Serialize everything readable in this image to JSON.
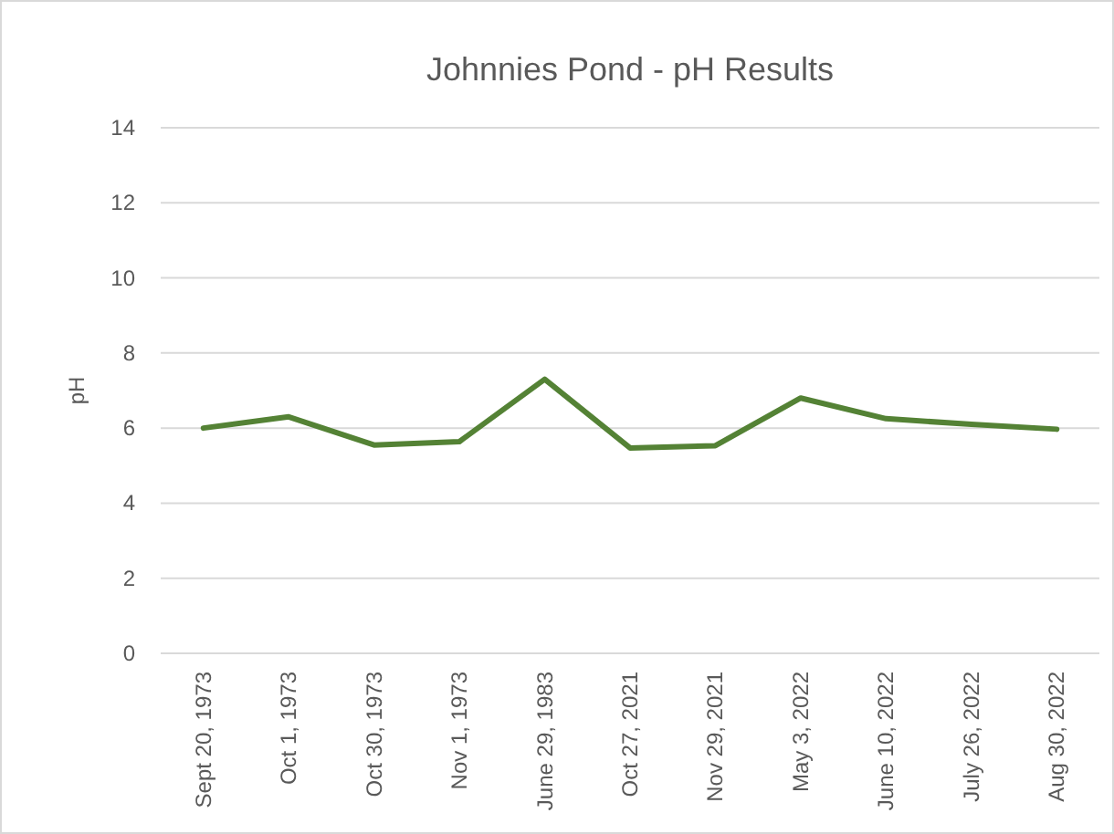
{
  "chart_data": {
    "type": "line",
    "title": "Johnnies Pond - pH Results",
    "ylabel": "pH",
    "categories": [
      "Sept 20, 1973",
      "Oct 1, 1973",
      "Oct 30, 1973",
      "Nov 1, 1973",
      "June 29, 1983",
      "Oct 27, 2021",
      "Nov 29, 2021",
      "May 3, 2022",
      "June 10, 2022",
      "July 26, 2022",
      "Aug 30, 2022"
    ],
    "series": [
      {
        "color": "#548235",
        "values": [
          6.0,
          6.3,
          5.55,
          5.64,
          7.3,
          5.47,
          5.53,
          6.8,
          6.25,
          6.1,
          5.97
        ]
      }
    ],
    "ylim": [
      0,
      14
    ],
    "yticks": [
      0,
      2,
      4,
      6,
      8,
      10,
      12,
      14
    ],
    "grid": "y",
    "marker": "none",
    "line_style": "solid"
  }
}
